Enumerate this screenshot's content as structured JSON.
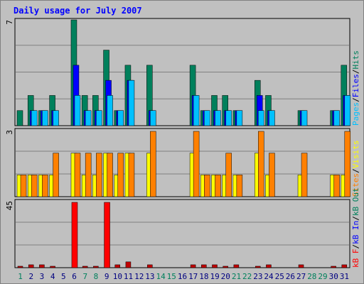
{
  "chart_data": {
    "type": "bar",
    "title": "Daily usage for July 2007",
    "days": [
      1,
      2,
      3,
      4,
      5,
      6,
      7,
      8,
      9,
      10,
      11,
      12,
      13,
      14,
      15,
      16,
      17,
      18,
      19,
      20,
      21,
      22,
      23,
      24,
      25,
      26,
      27,
      28,
      29,
      30,
      31
    ],
    "weekend_days": [
      1,
      7,
      8,
      14,
      15,
      21,
      22,
      28,
      29
    ],
    "panels": [
      {
        "name": "top",
        "ymax_label": "7",
        "ymax": 7,
        "right_label_parts": [
          "Pages",
          "/",
          "Files",
          "/",
          "Hits"
        ],
        "series": [
          {
            "name": "Hits",
            "values": [
              1,
              2,
              1,
              2,
              0,
              7,
              2,
              2,
              5,
              1,
              4,
              0,
              4,
              0,
              0,
              0,
              4,
              1,
              2,
              2,
              1,
              0,
              3,
              2,
              0,
              0,
              1,
              0,
              0,
              1,
              4
            ]
          },
          {
            "name": "Files",
            "values": [
              0,
              1,
              1,
              1,
              0,
              4,
              1,
              1,
              3,
              1,
              3,
              0,
              1,
              0,
              0,
              0,
              2,
              1,
              1,
              1,
              1,
              0,
              2,
              1,
              0,
              0,
              1,
              0,
              0,
              1,
              2
            ]
          },
          {
            "name": "Pages",
            "values": [
              0,
              1,
              1,
              1,
              0,
              2,
              1,
              1,
              2,
              1,
              3,
              0,
              1,
              0,
              0,
              0,
              2,
              1,
              1,
              1,
              1,
              0,
              1,
              1,
              0,
              0,
              1,
              0,
              0,
              1,
              2
            ]
          }
        ]
      },
      {
        "name": "middle",
        "ymax_label": "3",
        "ymax": 3,
        "right_label_parts": [
          "Sites",
          "/",
          "Visits"
        ],
        "series": [
          {
            "name": "Visits",
            "values": [
              1,
              1,
              1,
              1,
              0,
              2,
              1,
              1,
              2,
              1,
              2,
              0,
              2,
              0,
              0,
              0,
              2,
              1,
              1,
              1,
              1,
              0,
              2,
              1,
              0,
              0,
              1,
              0,
              0,
              1,
              1
            ]
          },
          {
            "name": "Sites",
            "values": [
              1,
              1,
              1,
              2,
              0,
              2,
              2,
              2,
              2,
              2,
              2,
              0,
              3,
              0,
              0,
              0,
              3,
              1,
              1,
              2,
              1,
              0,
              3,
              2,
              0,
              0,
              2,
              0,
              0,
              1,
              3
            ]
          }
        ]
      },
      {
        "name": "bottom",
        "ymax_label": "45",
        "ymax": 45,
        "right_label_parts": [
          "kB F",
          "/",
          "kB In",
          "/",
          "kB Out"
        ],
        "series": [
          {
            "name": "kB F",
            "values": [
              1,
              2,
              2,
              1,
              0,
              45,
              1,
              1,
              45,
              2,
              4,
              0,
              2,
              0,
              0,
              0,
              2,
              2,
              2,
              1,
              2,
              0,
              1,
              2,
              0,
              0,
              2,
              0,
              0,
              1,
              2
            ]
          }
        ]
      }
    ],
    "colors": {
      "hits": "#00805c",
      "files": "#0000ff",
      "pages": "#00c0ff",
      "visits": "#ffff00",
      "sites": "#ff8000",
      "kbf": "#ff0000",
      "kbf_small": "#c00000",
      "title": "#0000ff",
      "weekday": "#000080",
      "weekend": "#00805c",
      "grid": "#808080",
      "panel_border": "#000000"
    }
  }
}
